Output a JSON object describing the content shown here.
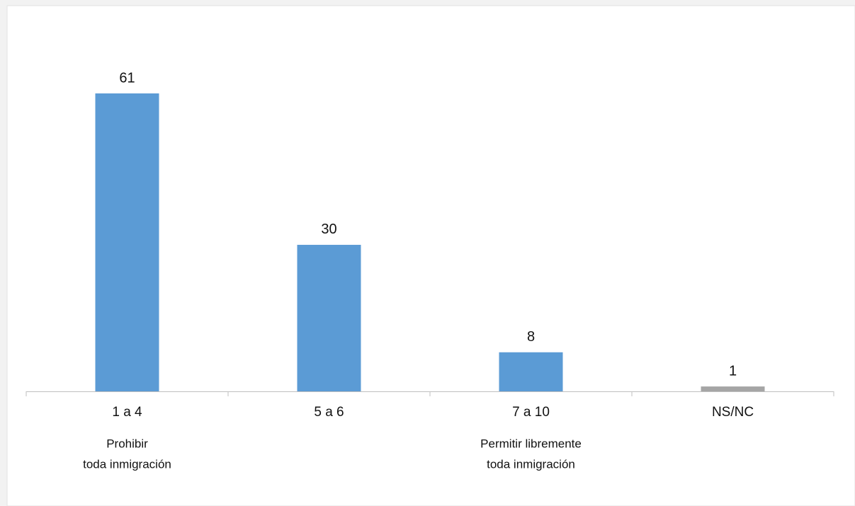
{
  "chart_data": {
    "type": "bar",
    "categories": [
      "1 a 4",
      "5 a 6",
      "7 a 10",
      "NS/NC"
    ],
    "values": [
      61,
      30,
      8,
      1
    ],
    "colors": [
      "#5b9bd5",
      "#5b9bd5",
      "#5b9bd5",
      "#a5a5a5"
    ],
    "category_notes": [
      [
        "Prohibir",
        "toda inmigración"
      ],
      [],
      [
        "Permitir libremente",
        "toda inmigración"
      ],
      []
    ]
  }
}
